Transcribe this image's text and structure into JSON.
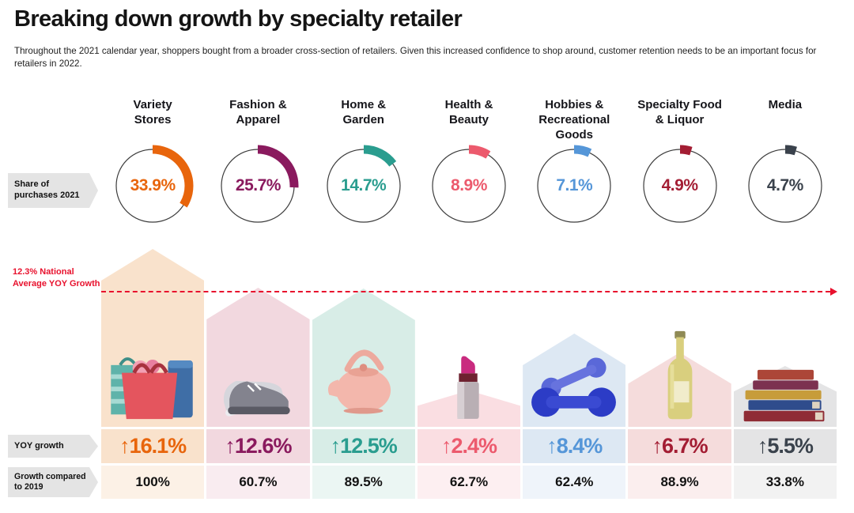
{
  "header": {
    "title": "Breaking down growth by specialty retailer",
    "subtitle": "Throughout the 2021 calendar year, shoppers bought from a broader cross-section of retailers. Given this increased confidence to shop around, customer retention needs to be an important focus for retailers in 2022."
  },
  "row_labels": {
    "share": "Share of\npurchases 2021",
    "yoy": "YOY growth",
    "growth_2019": "Growth compared\nto 2019"
  },
  "national_average": {
    "label": "12.3% National\nAverage YOY Growth",
    "value": 12.3,
    "color": "#E8112D"
  },
  "columns": [
    {
      "name": "Variety\nStores",
      "share_display": "33.9%",
      "yoy_display": "↑16.1%",
      "growth_2019_display": "100%",
      "color": "#E8650C",
      "tint": "#F9E2CC",
      "tint_light": "#FCF1E6",
      "icon": "shopping-bags"
    },
    {
      "name": "Fashion &\nApparel",
      "share_display": "25.7%",
      "yoy_display": "↑12.6%",
      "growth_2019_display": "60.7%",
      "color": "#8A1A5E",
      "tint": "#F2D8DF",
      "tint_light": "#F9ECF0",
      "icon": "sneakers"
    },
    {
      "name": "Home &\nGarden",
      "share_display": "14.7%",
      "yoy_display": "↑12.5%",
      "growth_2019_display": "89.5%",
      "color": "#2A9D8F",
      "tint": "#D8EDE7",
      "tint_light": "#EBF6F3",
      "icon": "kettle"
    },
    {
      "name": "Health &\nBeauty",
      "share_display": "8.9%",
      "yoy_display": "↑2.4%",
      "growth_2019_display": "62.7%",
      "color": "#EC5A6D",
      "tint": "#FADEE2",
      "tint_light": "#FDEFF1",
      "icon": "lipstick"
    },
    {
      "name": "Hobbies &\nRecreational\nGoods",
      "share_display": "7.1%",
      "yoy_display": "↑8.4%",
      "growth_2019_display": "62.4%",
      "color": "#5596D8",
      "tint": "#DDE8F3",
      "tint_light": "#EFF4FA",
      "icon": "dumbbell"
    },
    {
      "name": "Specialty Food\n& Liquor",
      "share_display": "4.9%",
      "yoy_display": "↑6.7%",
      "growth_2019_display": "88.9%",
      "color": "#A31D33",
      "tint": "#F5DCDC",
      "tint_light": "#FBEEEE",
      "icon": "wine-bottle"
    },
    {
      "name": "Media",
      "share_display": "4.7%",
      "yoy_display": "↑5.5%",
      "growth_2019_display": "33.8%",
      "color": "#3A424C",
      "tint": "#E4E4E5",
      "tint_light": "#F2F2F2",
      "icon": "books"
    }
  ],
  "chart_data": {
    "type": "bar",
    "categories": [
      "Variety Stores",
      "Fashion & Apparel",
      "Home & Garden",
      "Health & Beauty",
      "Hobbies & Recreational Goods",
      "Specialty Food & Liquor",
      "Media"
    ],
    "series": [
      {
        "name": "Share of purchases 2021",
        "unit": "%",
        "values": [
          33.9,
          25.7,
          14.7,
          8.9,
          7.1,
          4.9,
          4.7
        ]
      },
      {
        "name": "YOY growth",
        "unit": "%",
        "values": [
          16.1,
          12.6,
          12.5,
          2.4,
          8.4,
          6.7,
          5.5
        ]
      },
      {
        "name": "Growth compared to 2019",
        "unit": "%",
        "values": [
          100,
          60.7,
          89.5,
          62.7,
          62.4,
          88.9,
          33.8
        ]
      }
    ],
    "annotations": [
      {
        "label": "12.3% National Average YOY Growth",
        "value": 12.3
      }
    ],
    "title": "Breaking down growth by specialty retailer",
    "legend_position": "none",
    "grid": false
  }
}
